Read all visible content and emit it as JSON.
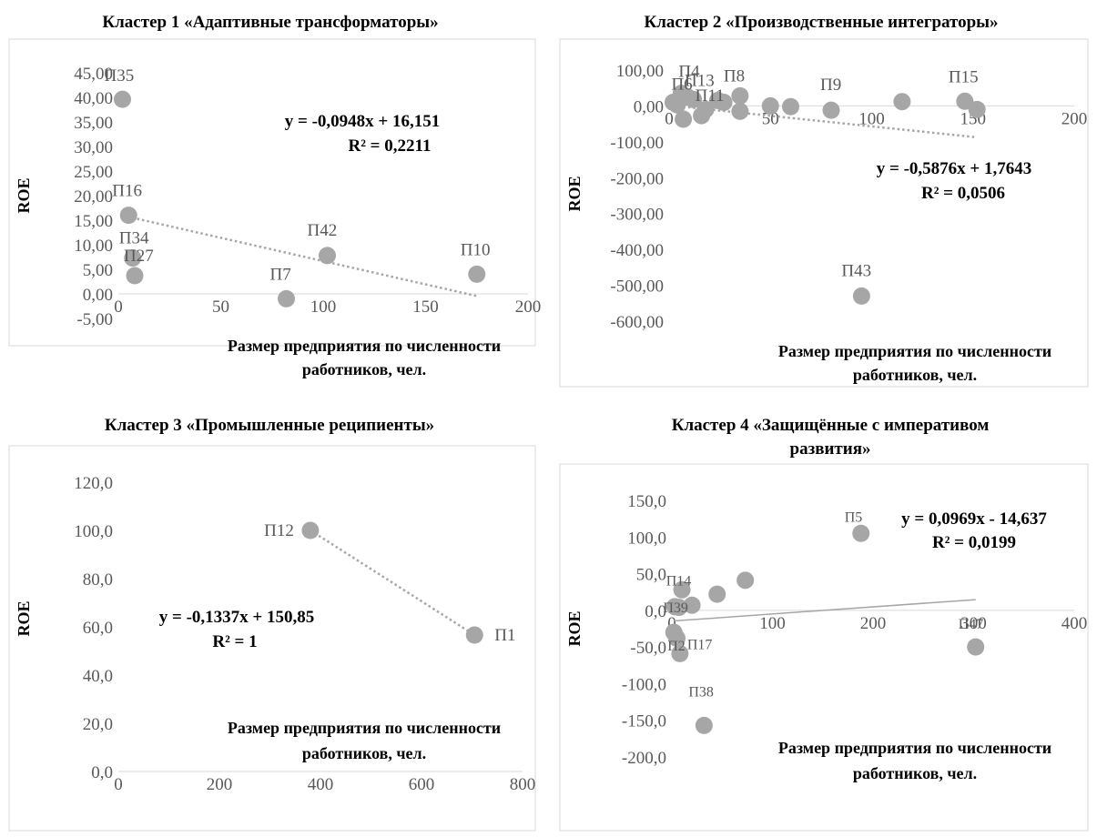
{
  "chart_data": [
    {
      "type": "scatter",
      "title": "Кластер 1 «Адаптивные трансформаторы»",
      "xlabel": "Размер предприятия по численности работников, чел.",
      "ylabel": "ROE",
      "xlim": [
        0,
        200
      ],
      "xticks": [
        "0",
        "50",
        "100",
        "150",
        "200"
      ],
      "ylim": [
        -5,
        45
      ],
      "yticks": [
        "-5,00",
        "0,00",
        "5,00",
        "10,00",
        "15,00",
        "20,00",
        "25,00",
        "30,00",
        "35,00",
        "40,00",
        "45,00"
      ],
      "points": [
        {
          "label": "П35",
          "x": 2,
          "y": 39.6
        },
        {
          "label": "П16",
          "x": 5,
          "y": 16
        },
        {
          "label": "П34",
          "x": 7,
          "y": 7.3
        },
        {
          "label": "П27",
          "x": 8,
          "y": 3.7
        },
        {
          "label": "П7",
          "x": 82,
          "y": -1
        },
        {
          "label": "П42",
          "x": 102,
          "y": 7.8
        },
        {
          "label": "П10",
          "x": 175,
          "y": 4
        }
      ],
      "trendline": {
        "style": "dotted",
        "slope": -0.0948,
        "intercept": 16.151,
        "x_range": [
          2,
          175
        ]
      },
      "equation": "y = -0,0948x + 16,151",
      "r2": "R² = 0,2211"
    },
    {
      "type": "scatter",
      "title": "Кластер 2 «Производственные интеграторы»",
      "xlabel": "Размер предприятия по численности работников, чел.",
      "ylabel": "ROE",
      "xlim": [
        0,
        200
      ],
      "xticks": [
        "0",
        "50",
        "100",
        "150",
        "200"
      ],
      "ylim": [
        -600,
        100
      ],
      "yticks": [
        "-600,00",
        "-500,00",
        "-400,00",
        "-300,00",
        "-200,00",
        "-100,00",
        "0,00",
        "100,00"
      ],
      "points": [
        {
          "label": "П6",
          "x": 2,
          "y": 10
        },
        {
          "label": "",
          "x": 4,
          "y": 3
        },
        {
          "label": "П4",
          "x": 6,
          "y": 35
        },
        {
          "label": "",
          "x": 7,
          "y": -37
        },
        {
          "label": "П13",
          "x": 9,
          "y": 25
        },
        {
          "label": "",
          "x": 12,
          "y": 18
        },
        {
          "label": "П11",
          "x": 16,
          "y": -27
        },
        {
          "label": "",
          "x": 18,
          "y": -10
        },
        {
          "label": "",
          "x": 24,
          "y": 15
        },
        {
          "label": "",
          "x": 27,
          "y": 10
        },
        {
          "label": "П8",
          "x": 35,
          "y": 28
        },
        {
          "label": "",
          "x": 35,
          "y": -15
        },
        {
          "label": "",
          "x": 50,
          "y": 0
        },
        {
          "label": "",
          "x": 60,
          "y": -2
        },
        {
          "label": "П9",
          "x": 80,
          "y": -12
        },
        {
          "label": "П43",
          "x": 95,
          "y": -530
        },
        {
          "label": "",
          "x": 115,
          "y": 12
        },
        {
          "label": "П15",
          "x": 146,
          "y": 13
        },
        {
          "label": "",
          "x": 152,
          "y": -10
        }
      ],
      "trendline": {
        "style": "dotted",
        "slope": -0.5876,
        "intercept": 1.7643,
        "x_range": [
          2,
          152
        ]
      },
      "equation": "y = -0,5876x + 1,7643",
      "r2": "R² = 0,0506"
    },
    {
      "type": "scatter",
      "title": "Кластер 3 «Промышленные реципиенты»",
      "xlabel": "Размер предприятия по численности работников, чел.",
      "ylabel": "ROE",
      "xlim": [
        0,
        800
      ],
      "xticks": [
        "0",
        "200",
        "400",
        "600",
        "800"
      ],
      "ylim": [
        0,
        120
      ],
      "yticks": [
        "0,0",
        "20,0",
        "40,0",
        "60,0",
        "80,0",
        "100,0",
        "120,0"
      ],
      "points": [
        {
          "label": "П12",
          "x": 380,
          "y": 100
        },
        {
          "label": "П1",
          "x": 705,
          "y": 56.6
        }
      ],
      "trendline": {
        "style": "dotted",
        "slope": -0.1337,
        "intercept": 150.85,
        "x_range": [
          380,
          705
        ]
      },
      "equation": "y = -0,1337x + 150,85",
      "r2": "R² = 1"
    },
    {
      "type": "scatter",
      "title": "Кластер 4 «Защищённые с императивом развития»",
      "xlabel": "Размер предприятия по численности работников, чел.",
      "ylabel": "ROE",
      "xlim": [
        0,
        400
      ],
      "xticks": [
        "0",
        "100",
        "200",
        "300",
        "400"
      ],
      "ylim": [
        -200,
        150
      ],
      "yticks": [
        "-200,0",
        "-150,0",
        "-100,0",
        "-50,0",
        "0,0",
        "50,0",
        "100,0",
        "150,0"
      ],
      "points": [
        {
          "label": "П2",
          "x": 2,
          "y": -30
        },
        {
          "label": "П39",
          "x": 3,
          "y": 5
        },
        {
          "label": "",
          "x": 5,
          "y": -38
        },
        {
          "label": "П14",
          "x": 7,
          "y": 4
        },
        {
          "label": "П17",
          "x": 8,
          "y": -59
        },
        {
          "label": "",
          "x": 10,
          "y": 28
        },
        {
          "label": "",
          "x": 20,
          "y": 7
        },
        {
          "label": "П38",
          "x": 32,
          "y": -157
        },
        {
          "label": "",
          "x": 45,
          "y": 22
        },
        {
          "label": "",
          "x": 73,
          "y": 41
        },
        {
          "label": "П5",
          "x": 188,
          "y": 105
        },
        {
          "label": "П47",
          "x": 302,
          "y": -50
        }
      ],
      "trendline": {
        "style": "solid",
        "slope": 0.0969,
        "intercept": -14.637,
        "x_range": [
          2,
          302
        ]
      },
      "equation": "y = 0,0969x - 14,637",
      "r2": "R² = 0,0199"
    }
  ]
}
